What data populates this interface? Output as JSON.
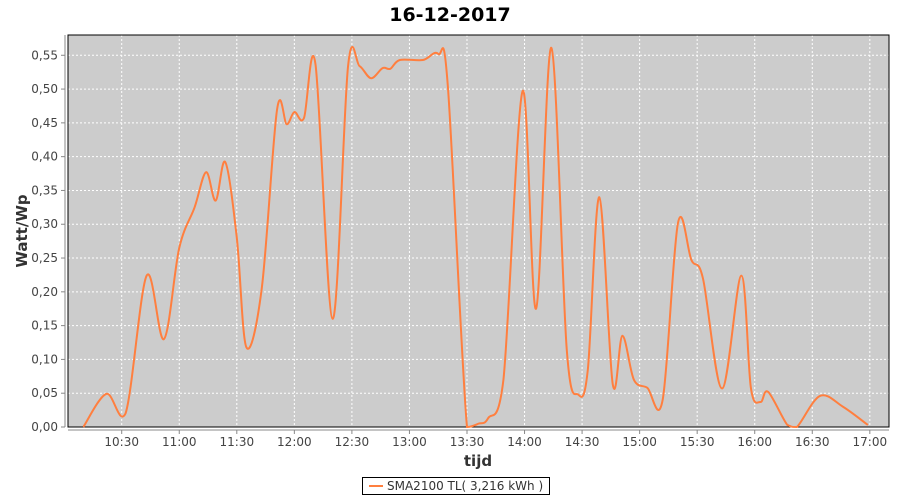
{
  "chart_data": {
    "type": "line",
    "title": "16-12-2017",
    "xlabel": "tijd",
    "ylabel": "Watt/Wp",
    "xlim": [
      "10:02",
      "17:10"
    ],
    "ylim": [
      0,
      0.58
    ],
    "grid": true,
    "legend_position": "bottom",
    "x_ticks": [
      "10:30",
      "11:00",
      "11:30",
      "12:00",
      "12:30",
      "13:00",
      "13:30",
      "14:00",
      "14:30",
      "15:00",
      "15:30",
      "16:00",
      "16:30",
      "17:00"
    ],
    "y_ticks": [
      "0,00",
      "0,05",
      "0,10",
      "0,15",
      "0,20",
      "0,25",
      "0,30",
      "0,35",
      "0,40",
      "0,45",
      "0,50",
      "0,55"
    ],
    "series": [
      {
        "name": "SMA2100 TL( 3,216 kWh )",
        "color": "#ff7f3f",
        "points": [
          [
            "10:10",
            0
          ],
          [
            "10:22",
            0.049
          ],
          [
            "10:32",
            0.02
          ],
          [
            "10:43",
            0.224
          ],
          [
            "10:52",
            0.13
          ],
          [
            "11:00",
            0.265
          ],
          [
            "11:08",
            0.325
          ],
          [
            "11:14",
            0.377
          ],
          [
            "11:19",
            0.335
          ],
          [
            "11:24",
            0.392
          ],
          [
            "11:30",
            0.28
          ],
          [
            "11:35",
            0.118
          ],
          [
            "11:43",
            0.205
          ],
          [
            "11:51",
            0.47
          ],
          [
            "11:56",
            0.448
          ],
          [
            "12:00",
            0.466
          ],
          [
            "12:05",
            0.457
          ],
          [
            "12:11",
            0.537
          ],
          [
            "12:20",
            0.16
          ],
          [
            "12:28",
            0.534
          ],
          [
            "12:34",
            0.534
          ],
          [
            "12:40",
            0.516
          ],
          [
            "12:46",
            0.531
          ],
          [
            "12:50",
            0.53
          ],
          [
            "12:55",
            0.543
          ],
          [
            "13:07",
            0.543
          ],
          [
            "13:15",
            0.552
          ],
          [
            "13:20",
            0.505
          ],
          [
            "13:30",
            0
          ],
          [
            "13:36",
            0.005
          ],
          [
            "13:41",
            0.013
          ],
          [
            "13:49",
            0.07
          ],
          [
            "13:59",
            0.497
          ],
          [
            "14:06",
            0.175
          ],
          [
            "14:14",
            0.561
          ],
          [
            "14:22",
            0.115
          ],
          [
            "14:28",
            0.048
          ],
          [
            "14:33",
            0.085
          ],
          [
            "14:39",
            0.34
          ],
          [
            "14:46",
            0.063
          ],
          [
            "14:51",
            0.135
          ],
          [
            "14:57",
            0.07
          ],
          [
            "15:04",
            0.058
          ],
          [
            "15:12",
            0.04
          ],
          [
            "15:20",
            0.302
          ],
          [
            "15:27",
            0.247
          ],
          [
            "15:33",
            0.22
          ],
          [
            "15:43",
            0.057
          ],
          [
            "15:53",
            0.224
          ],
          [
            "15:58",
            0.058
          ],
          [
            "16:03",
            0.037
          ],
          [
            "16:07",
            0.052
          ],
          [
            "16:17",
            0.003
          ],
          [
            "16:22",
            0
          ],
          [
            "16:34",
            0.046
          ],
          [
            "16:46",
            0.03
          ],
          [
            "16:59",
            0.003
          ]
        ]
      }
    ]
  }
}
